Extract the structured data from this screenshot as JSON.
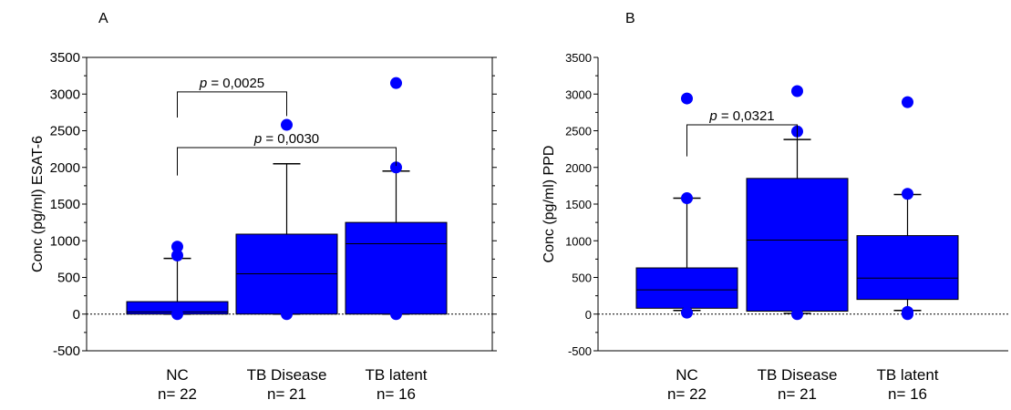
{
  "chart_data": [
    {
      "panel_label": "A",
      "type": "box",
      "ylabel": "Conc (pg/ml) ESAT-6",
      "ylim": [
        -500,
        3500
      ],
      "yticks": [
        -500,
        0,
        500,
        1000,
        1500,
        2000,
        2500,
        3000,
        3500
      ],
      "box_color": "#0000ff",
      "categories": [
        {
          "name": "NC",
          "n_label": "n= 22",
          "q1": 0,
          "median": 30,
          "q3": 170,
          "whisker_low": 0,
          "whisker_high": 760,
          "outliers": [
            920,
            800,
            0
          ]
        },
        {
          "name": "TB Disease",
          "n_label": "n= 21",
          "q1": 0,
          "median": 550,
          "q3": 1090,
          "whisker_low": 0,
          "whisker_high": 2050,
          "outliers": [
            2580,
            0
          ]
        },
        {
          "name": "TB latent",
          "n_label": "n= 16",
          "q1": 0,
          "median": 960,
          "q3": 1250,
          "whisker_low": 0,
          "whisker_high": 1950,
          "outliers": [
            3150,
            2000,
            0
          ]
        }
      ],
      "comparisons": [
        {
          "from": 0,
          "to": 1,
          "y_top": 3030,
          "y_left": 2680,
          "y_right": 2700,
          "label": "p = 0,0025"
        },
        {
          "from": 0,
          "to": 2,
          "y_top": 2270,
          "y_left": 1890,
          "y_right": 2020,
          "label": "p = 0,0030"
        }
      ]
    },
    {
      "panel_label": "B",
      "type": "box",
      "ylabel": "Conc (pg/ml) PPD",
      "ylim": [
        -500,
        3500
      ],
      "yticks": [
        -500,
        0,
        500,
        1000,
        1500,
        2000,
        2500,
        3000,
        3500
      ],
      "box_color": "#0000ff",
      "categories": [
        {
          "name": "NC",
          "n_label": "n= 22",
          "q1": 80,
          "median": 330,
          "q3": 630,
          "whisker_low": 50,
          "whisker_high": 1580,
          "outliers": [
            2940,
            1580,
            20
          ]
        },
        {
          "name": "TB Disease",
          "n_label": "n= 21",
          "q1": 40,
          "median": 1010,
          "q3": 1850,
          "whisker_low": 10,
          "whisker_high": 2380,
          "outliers": [
            3040,
            2490,
            0
          ]
        },
        {
          "name": "TB latent",
          "n_label": "n= 16",
          "q1": 200,
          "median": 490,
          "q3": 1070,
          "whisker_low": 50,
          "whisker_high": 1630,
          "outliers": [
            2890,
            1640,
            30,
            0
          ]
        }
      ],
      "comparisons": [
        {
          "from": 0,
          "to": 1,
          "y_top": 2580,
          "y_left": 2150,
          "y_right": 2150,
          "label": "p = 0,0321"
        }
      ]
    }
  ]
}
